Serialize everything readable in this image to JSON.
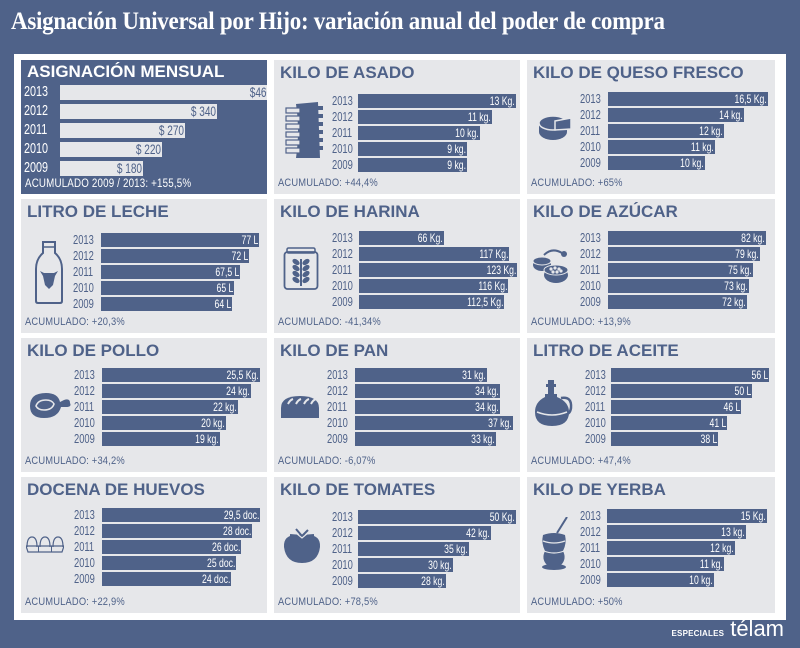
{
  "title": "Asignación Universal por Hijo: variación anual del poder de compra",
  "brand": {
    "prefix": "ESPECIALES",
    "name": "télam"
  },
  "colors": {
    "primary": "#4f6289",
    "panel": "#e6e7ea",
    "frame": "#ffffff"
  },
  "chart_data": [
    {
      "type": "bar",
      "orientation": "horizontal",
      "title": "ASIGNACIÓN MENSUAL",
      "icon": null,
      "categories": [
        "2013",
        "2012",
        "2011",
        "2010",
        "2009"
      ],
      "values": [
        460,
        340,
        270,
        220,
        180
      ],
      "labels": [
        "$460",
        "$ 340",
        "$ 270",
        "$ 220",
        "$ 180"
      ],
      "unit": "$",
      "footer": "ACUMULADO 2009 / 2013: +155,5%"
    },
    {
      "type": "bar",
      "orientation": "horizontal",
      "title": "KILO DE ASADO",
      "icon": "ribs-icon",
      "categories": [
        "2013",
        "2012",
        "2011",
        "2010",
        "2009"
      ],
      "values": [
        13,
        11,
        10,
        9,
        9
      ],
      "labels": [
        "13 Kg.",
        "11 kg.",
        "10 kg.",
        "9 kg.",
        "9 kg."
      ],
      "unit": "kg",
      "footer": "ACUMULADO: +44,4%"
    },
    {
      "type": "bar",
      "orientation": "horizontal",
      "title": "KILO DE QUESO FRESCO",
      "icon": "cheese-icon",
      "categories": [
        "2013",
        "2012",
        "2011",
        "2010",
        "2009"
      ],
      "values": [
        16.5,
        14,
        12,
        11,
        10
      ],
      "labels": [
        "16,5 Kg.",
        "14 kg.",
        "12 kg.",
        "11 kg.",
        "10 kg."
      ],
      "unit": "kg",
      "footer": "ACUMULADO: +65%"
    },
    {
      "type": "bar",
      "orientation": "horizontal",
      "title": "LITRO DE LECHE",
      "icon": "milk-bottle-icon",
      "categories": [
        "2013",
        "2012",
        "2011",
        "2010",
        "2009"
      ],
      "values": [
        77,
        72,
        67.5,
        65,
        64
      ],
      "labels": [
        "77 L",
        "72 L",
        "67,5 L",
        "65 L",
        "64 L"
      ],
      "unit": "L",
      "footer": "ACUMULADO: +20,3%"
    },
    {
      "type": "bar",
      "orientation": "horizontal",
      "title": "KILO DE HARINA",
      "icon": "flour-wheat-icon",
      "categories": [
        "2013",
        "2012",
        "2011",
        "2010",
        "2009"
      ],
      "values": [
        66,
        117,
        123,
        116,
        112.5
      ],
      "labels": [
        "66 Kg.",
        "117 Kg.",
        "123 Kg.",
        "116 Kg.",
        "112,5 Kg."
      ],
      "unit": "kg",
      "footer": "ACUMULADO: -41,34%"
    },
    {
      "type": "bar",
      "orientation": "horizontal",
      "title": "KILO DE AZÚCAR",
      "icon": "sugar-bowl-icon",
      "categories": [
        "2013",
        "2012",
        "2011",
        "2010",
        "2009"
      ],
      "values": [
        82,
        79,
        75,
        73,
        72
      ],
      "labels": [
        "82 kg.",
        "79 kg.",
        "75 kg.",
        "73 kg.",
        "72 kg."
      ],
      "unit": "kg",
      "footer": "ACUMULADO: +13,9%"
    },
    {
      "type": "bar",
      "orientation": "horizontal",
      "title": "KILO DE POLLO",
      "icon": "chicken-leg-icon",
      "categories": [
        "2013",
        "2012",
        "2011",
        "2010",
        "2009"
      ],
      "values": [
        25.5,
        24,
        22,
        20,
        19
      ],
      "labels": [
        "25,5 Kg.",
        "24 kg.",
        "22 kg.",
        "20 kg.",
        "19 kg."
      ],
      "unit": "kg",
      "footer": "ACUMULADO: +34,2%"
    },
    {
      "type": "bar",
      "orientation": "horizontal",
      "title": "KILO DE PAN",
      "icon": "bread-icon",
      "categories": [
        "2013",
        "2012",
        "2011",
        "2010",
        "2009"
      ],
      "values": [
        31,
        34,
        34,
        37,
        33
      ],
      "labels": [
        "31 kg.",
        "34 kg.",
        "34 kg.",
        "37 kg.",
        "33 kg."
      ],
      "unit": "kg",
      "footer": "ACUMULADO: -6,07%"
    },
    {
      "type": "bar",
      "orientation": "horizontal",
      "title": "LITRO DE ACEITE",
      "icon": "oil-jug-icon",
      "categories": [
        "2013",
        "2012",
        "2011",
        "2010",
        "2009"
      ],
      "values": [
        56,
        50,
        46,
        41,
        38
      ],
      "labels": [
        "56 L",
        "50 L",
        "46 L",
        "41 L",
        "38 L"
      ],
      "unit": "L",
      "footer": "ACUMULADO: +47,4%"
    },
    {
      "type": "bar",
      "orientation": "horizontal",
      "title": "DOCENA DE HUEVOS",
      "icon": "eggs-carton-icon",
      "categories": [
        "2013",
        "2012",
        "2011",
        "2010",
        "2009"
      ],
      "values": [
        29.5,
        28,
        26,
        25,
        24
      ],
      "labels": [
        "29,5 doc.",
        "28 doc.",
        "26 doc.",
        "25 doc.",
        "24 doc."
      ],
      "unit": "doc",
      "footer": "ACUMULADO: +22,9%"
    },
    {
      "type": "bar",
      "orientation": "horizontal",
      "title": "KILO DE TOMATES",
      "icon": "tomato-icon",
      "categories": [
        "2013",
        "2012",
        "2011",
        "2010",
        "2009"
      ],
      "values": [
        50,
        42,
        35,
        30,
        28
      ],
      "labels": [
        "50 Kg.",
        "42 kg.",
        "35 kg.",
        "30 kg.",
        "28 kg."
      ],
      "unit": "kg",
      "footer": "ACUMULADO: +78,5%"
    },
    {
      "type": "bar",
      "orientation": "horizontal",
      "title": "KILO DE YERBA",
      "icon": "mate-icon",
      "categories": [
        "2013",
        "2012",
        "2011",
        "2010",
        "2009"
      ],
      "values": [
        15,
        13,
        12,
        11,
        10
      ],
      "labels": [
        "15 Kg.",
        "13 kg.",
        "12 kg.",
        "11 kg.",
        "10 kg."
      ],
      "unit": "kg",
      "footer": "ACUMULADO: +50%"
    }
  ]
}
